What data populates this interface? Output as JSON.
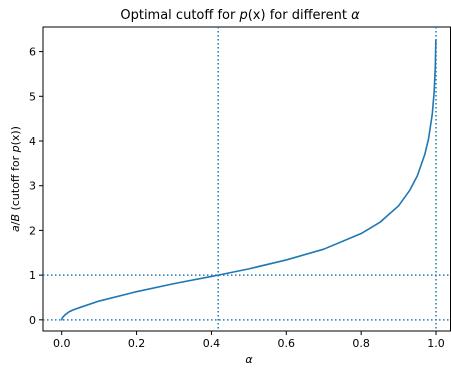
{
  "chart_data": {
    "type": "line",
    "title": "Optimal cutoff for p(x) for different α",
    "title_parts": {
      "prefix": "Optimal cutoff for ",
      "func_italic_p": "p",
      "func_args": "(x)",
      "middle": " for different ",
      "alpha": "α"
    },
    "xlabel": "α",
    "ylabel": "a/B (cutoff for p(x))",
    "ylabel_parts": {
      "a": "a",
      "slash": "/",
      "B": "B",
      "cutoff": " (cutoff for ",
      "p": "p",
      "args": "(x))"
    },
    "xlim": [
      -0.05,
      1.04
    ],
    "ylim": [
      -0.25,
      6.55
    ],
    "x_ticks": [
      0.0,
      0.2,
      0.4,
      0.6,
      0.8,
      1.0
    ],
    "x_tick_labels": [
      "0.0",
      "0.2",
      "0.4",
      "0.6",
      "0.8",
      "1.0"
    ],
    "y_ticks": [
      0,
      1,
      2,
      3,
      4,
      5,
      6
    ],
    "y_tick_labels": [
      "0",
      "1",
      "2",
      "3",
      "4",
      "5",
      "6"
    ],
    "grid": false,
    "reference_lines": [
      {
        "orientation": "horizontal",
        "value": 0,
        "style": "dotted"
      },
      {
        "orientation": "horizontal",
        "value": 1,
        "style": "dotted"
      },
      {
        "orientation": "vertical",
        "value": 0.418,
        "style": "dotted"
      },
      {
        "orientation": "vertical",
        "value": 1.0,
        "style": "dotted"
      }
    ],
    "series": [
      {
        "x": [
          0.0,
          0.002,
          0.01,
          0.02,
          0.03,
          0.05,
          0.1,
          0.2,
          0.3,
          0.4,
          0.418,
          0.5,
          0.6,
          0.7,
          0.8,
          0.85,
          0.9,
          0.93,
          0.95,
          0.97,
          0.98,
          0.99,
          0.995,
          0.998,
          0.9995
        ],
        "y": [
          0.0,
          0.05,
          0.12,
          0.18,
          0.22,
          0.28,
          0.42,
          0.63,
          0.81,
          0.97,
          1.0,
          1.14,
          1.34,
          1.58,
          1.93,
          2.18,
          2.55,
          2.9,
          3.22,
          3.7,
          4.05,
          4.6,
          5.1,
          5.65,
          6.25
        ]
      }
    ],
    "colors": {
      "series": "#1f77b4",
      "reference": "#1f77b4",
      "axes": "#000000",
      "background": "#ffffff"
    }
  }
}
